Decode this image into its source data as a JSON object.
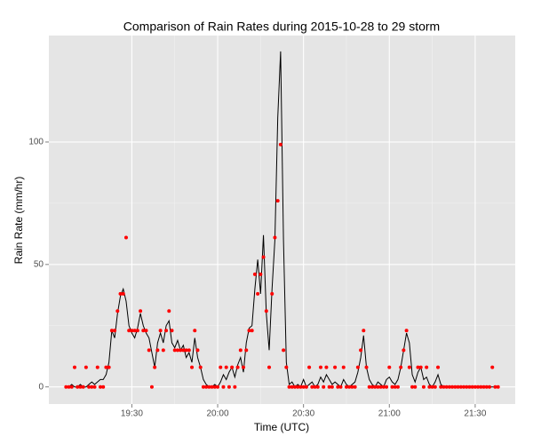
{
  "chart_data": {
    "type": "line",
    "title": "Comparison of Rain Rates during 2015-10-28 to 29 storm",
    "x_label": "Time (UTC)",
    "y_label": "Rain Rate (mm/hr)",
    "xlim": [
      "19:01",
      "21:44"
    ],
    "ylim": [
      -7,
      143.5
    ],
    "xticks": [
      "19:30",
      "20:00",
      "20:30",
      "21:00",
      "21:30"
    ],
    "yticks": [
      0,
      50,
      100
    ],
    "grid": true,
    "x": [
      "19:07",
      "19:08",
      "19:09",
      "19:10",
      "19:11",
      "19:12",
      "19:13",
      "19:14",
      "19:15",
      "19:16",
      "19:17",
      "19:18",
      "19:19",
      "19:20",
      "19:21",
      "19:22",
      "19:23",
      "19:24",
      "19:25",
      "19:26",
      "19:27",
      "19:28",
      "19:29",
      "19:30",
      "19:31",
      "19:32",
      "19:33",
      "19:34",
      "19:35",
      "19:36",
      "19:37",
      "19:38",
      "19:39",
      "19:40",
      "19:41",
      "19:42",
      "19:43",
      "19:44",
      "19:45",
      "19:46",
      "19:47",
      "19:48",
      "19:49",
      "19:50",
      "19:51",
      "19:52",
      "19:53",
      "19:54",
      "19:55",
      "19:56",
      "19:57",
      "19:58",
      "19:59",
      "20:00",
      "20:01",
      "20:02",
      "20:03",
      "20:04",
      "20:05",
      "20:06",
      "20:07",
      "20:08",
      "20:09",
      "20:10",
      "20:11",
      "20:12",
      "20:13",
      "20:14",
      "20:15",
      "20:16",
      "20:17",
      "20:18",
      "20:19",
      "20:20",
      "20:21",
      "20:22",
      "20:23",
      "20:24",
      "20:25",
      "20:26",
      "20:27",
      "20:28",
      "20:29",
      "20:30",
      "20:31",
      "20:32",
      "20:33",
      "20:34",
      "20:35",
      "20:36",
      "20:37",
      "20:38",
      "20:39",
      "20:40",
      "20:41",
      "20:42",
      "20:43",
      "20:44",
      "20:45",
      "20:46",
      "20:47",
      "20:48",
      "20:49",
      "20:50",
      "20:51",
      "20:52",
      "20:53",
      "20:54",
      "20:55",
      "20:56",
      "20:57",
      "20:58",
      "20:59",
      "21:00",
      "21:01",
      "21:02",
      "21:03",
      "21:04",
      "21:05",
      "21:06",
      "21:07",
      "21:08",
      "21:09",
      "21:10",
      "21:11",
      "21:12",
      "21:13",
      "21:14",
      "21:15",
      "21:16",
      "21:17",
      "21:18",
      "21:19",
      "21:20",
      "21:21",
      "21:22",
      "21:23",
      "21:24",
      "21:25",
      "21:26",
      "21:27",
      "21:28",
      "21:29",
      "21:30",
      "21:31",
      "21:32",
      "21:33",
      "21:34",
      "21:35",
      "21:36",
      "21:37",
      "21:38"
    ],
    "series": [
      {
        "mark": "line",
        "color": "#000000",
        "values": [
          0,
          0,
          1,
          0,
          0,
          1,
          0,
          0,
          1,
          2,
          1,
          2,
          3,
          3,
          5,
          10,
          23,
          20,
          30,
          37,
          40,
          35,
          25,
          22,
          20,
          24,
          30,
          25,
          22,
          20,
          14,
          8,
          18,
          22,
          18,
          25,
          27,
          18,
          16,
          19,
          15,
          17,
          12,
          14,
          10,
          20,
          12,
          8,
          3,
          1,
          0,
          0,
          1,
          0,
          2,
          5,
          3,
          6,
          8,
          4,
          9,
          12,
          6,
          18,
          24,
          25,
          40,
          52,
          38,
          62,
          30,
          15,
          40,
          60,
          110,
          137,
          60,
          10,
          1,
          2,
          0,
          1,
          0,
          3,
          0,
          1,
          2,
          0,
          1,
          4,
          2,
          5,
          3,
          1,
          2,
          1,
          0,
          3,
          1,
          0,
          1,
          2,
          6,
          12,
          21,
          8,
          3,
          1,
          0,
          2,
          1,
          0,
          3,
          4,
          2,
          1,
          3,
          8,
          15,
          22,
          18,
          5,
          2,
          6,
          8,
          3,
          4,
          1,
          0,
          2,
          5,
          1,
          0,
          0,
          0,
          0,
          0,
          0,
          0,
          0,
          0,
          0,
          0,
          0,
          0,
          0,
          0,
          0,
          0,
          0,
          0,
          0
        ]
      },
      {
        "mark": "point",
        "color": "#ff0000",
        "values": [
          0,
          0,
          0,
          8,
          0,
          0,
          0,
          8,
          0,
          0,
          0,
          8,
          0,
          0,
          8,
          8,
          23,
          23,
          31,
          38,
          38,
          61,
          23,
          23,
          23,
          23,
          31,
          23,
          23,
          15,
          0,
          8,
          15,
          23,
          15,
          23,
          31,
          23,
          15,
          15,
          15,
          15,
          15,
          15,
          8,
          23,
          15,
          8,
          0,
          0,
          0,
          0,
          0,
          0,
          8,
          0,
          8,
          0,
          8,
          0,
          8,
          15,
          8,
          15,
          23,
          23,
          46,
          38,
          46,
          53,
          31,
          8,
          38,
          61,
          76,
          99,
          15,
          8,
          0,
          0,
          0,
          0,
          0,
          0,
          0,
          8,
          0,
          0,
          0,
          8,
          0,
          8,
          0,
          0,
          8,
          0,
          0,
          8,
          0,
          0,
          0,
          0,
          8,
          15,
          23,
          8,
          0,
          0,
          0,
          0,
          0,
          0,
          0,
          8,
          0,
          0,
          0,
          8,
          15,
          23,
          8,
          0,
          0,
          8,
          8,
          0,
          8,
          0,
          0,
          0,
          8,
          0,
          0,
          0,
          0,
          0,
          0,
          0,
          0,
          0,
          0,
          0,
          0,
          0,
          0,
          0,
          0,
          0,
          0,
          8,
          0,
          0
        ]
      }
    ]
  }
}
